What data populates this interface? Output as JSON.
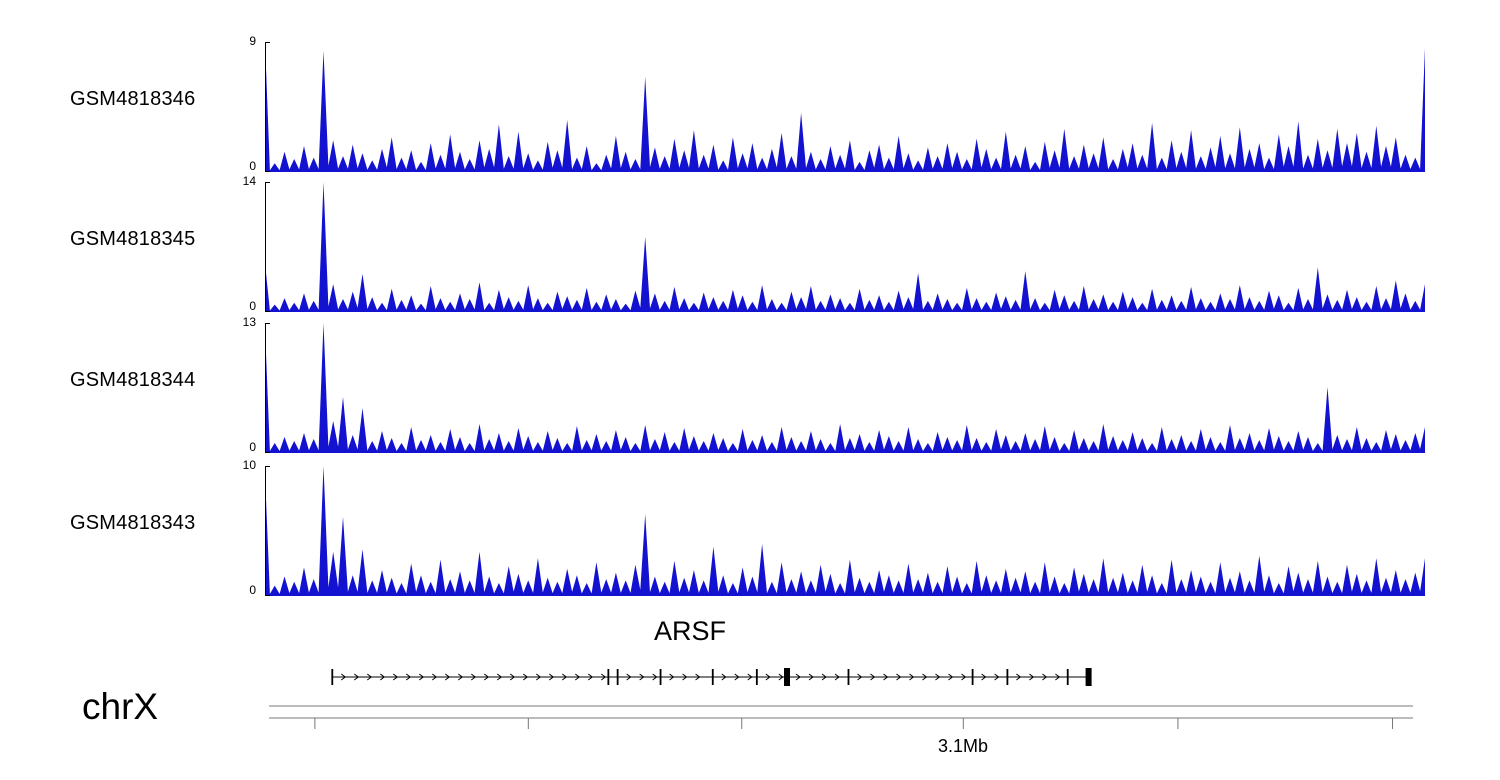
{
  "chart_data": {
    "type": "area",
    "title": "",
    "legend": "none",
    "grid": false,
    "color": "#1212d0",
    "tracks": [
      {
        "label": "GSM4818346",
        "ymax": 9,
        "ymin": 0,
        "values": [
          9,
          0.6,
          1.4,
          0.9,
          1.8,
          1.0,
          8.4,
          2.2,
          1.1,
          1.9,
          1.3,
          0.8,
          1.6,
          2.4,
          1.0,
          1.5,
          0.7,
          2.0,
          1.2,
          2.6,
          1.4,
          0.9,
          2.2,
          1.6,
          3.3,
          1.1,
          2.8,
          1.3,
          0.8,
          2.1,
          1.5,
          3.6,
          1.0,
          1.8,
          0.6,
          1.2,
          2.5,
          1.4,
          0.9,
          6.6,
          1.7,
          1.1,
          2.3,
          1.5,
          2.9,
          1.2,
          1.9,
          0.8,
          2.4,
          1.3,
          2.0,
          1.0,
          1.6,
          2.7,
          1.1,
          4.1,
          1.4,
          0.9,
          1.8,
          1.2,
          2.2,
          0.7,
          1.5,
          1.9,
          1.0,
          2.5,
          1.3,
          0.8,
          1.7,
          1.1,
          2.0,
          1.4,
          0.9,
          2.3,
          1.6,
          1.0,
          2.8,
          1.2,
          1.8,
          0.7,
          2.1,
          1.5,
          3.0,
          1.1,
          1.9,
          1.3,
          2.4,
          0.9,
          1.6,
          2.0,
          1.2,
          3.4,
          1.0,
          2.2,
          1.4,
          2.9,
          1.1,
          1.7,
          2.5,
          1.3,
          3.1,
          1.6,
          2.0,
          1.0,
          2.6,
          1.8,
          3.5,
          1.2,
          2.3,
          1.5,
          3.0,
          2.0,
          2.7,
          1.4,
          3.2,
          1.8,
          2.4,
          1.2,
          1.0,
          8.6
        ]
      },
      {
        "label": "GSM4818345",
        "ymax": 14,
        "ymin": 0,
        "values": [
          5.2,
          0.8,
          1.5,
          1.0,
          2.0,
          1.2,
          14,
          3.0,
          1.4,
          2.2,
          4.1,
          1.6,
          1.0,
          2.5,
          1.3,
          1.8,
          0.9,
          2.8,
          1.5,
          1.1,
          2.0,
          1.4,
          3.2,
          1.0,
          2.4,
          1.6,
          1.2,
          2.9,
          1.5,
          1.0,
          2.2,
          1.7,
          1.3,
          2.6,
          1.1,
          1.9,
          1.4,
          0.9,
          2.3,
          8.1,
          2.0,
          1.2,
          2.7,
          1.5,
          1.0,
          2.1,
          1.6,
          1.2,
          2.4,
          1.8,
          1.1,
          2.9,
          1.4,
          1.0,
          2.2,
          1.6,
          2.8,
          1.2,
          1.9,
          1.5,
          1.0,
          2.5,
          1.3,
          1.8,
          1.1,
          2.3,
          1.6,
          4.2,
          1.2,
          2.0,
          1.4,
          1.0,
          2.6,
          1.5,
          1.1,
          2.1,
          1.7,
          1.3,
          4.4,
          1.5,
          1.0,
          2.4,
          1.8,
          1.2,
          2.8,
          1.4,
          1.9,
          1.1,
          2.2,
          1.6,
          1.0,
          2.5,
          1.3,
          1.8,
          1.2,
          2.7,
          1.5,
          1.1,
          2.0,
          1.4,
          2.9,
          1.6,
          1.2,
          2.3,
          1.8,
          1.0,
          2.6,
          1.4,
          4.8,
          1.9,
          1.3,
          2.4,
          1.6,
          1.1,
          2.8,
          1.5,
          3.4,
          2.0,
          1.2,
          3.0
        ]
      },
      {
        "label": "GSM4818344",
        "ymax": 13,
        "ymin": 0,
        "values": [
          12.4,
          1.0,
          1.6,
          1.2,
          2.0,
          1.4,
          13,
          3.2,
          5.6,
          1.8,
          4.5,
          1.2,
          2.2,
          1.5,
          1.0,
          2.6,
          1.3,
          1.8,
          1.1,
          2.4,
          1.6,
          1.0,
          2.9,
          1.4,
          2.0,
          1.2,
          2.5,
          1.7,
          1.1,
          2.2,
          1.5,
          1.0,
          2.7,
          1.3,
          1.9,
          1.2,
          2.3,
          1.6,
          1.0,
          2.8,
          1.4,
          2.1,
          1.1,
          2.5,
          1.7,
          1.2,
          2.0,
          1.5,
          1.0,
          2.4,
          1.3,
          1.8,
          1.1,
          2.6,
          1.6,
          1.2,
          2.2,
          1.4,
          1.0,
          2.9,
          1.5,
          1.9,
          1.1,
          2.3,
          1.7,
          1.2,
          2.6,
          1.4,
          1.0,
          2.1,
          1.6,
          1.3,
          2.8,
          1.5,
          1.1,
          2.4,
          1.8,
          1.2,
          2.0,
          1.4,
          2.7,
          1.6,
          1.0,
          2.3,
          1.5,
          1.2,
          2.9,
          1.7,
          1.3,
          2.1,
          1.5,
          1.0,
          2.6,
          1.4,
          1.8,
          1.2,
          2.4,
          1.6,
          1.1,
          2.8,
          1.5,
          2.0,
          1.3,
          2.5,
          1.7,
          1.2,
          2.2,
          1.6,
          1.0,
          6.6,
          1.8,
          1.4,
          2.6,
          1.5,
          1.1,
          2.3,
          1.9,
          1.3,
          2.0,
          2.6
        ]
      },
      {
        "label": "GSM4818343",
        "ymax": 10,
        "ymin": 0,
        "values": [
          9.3,
          0.8,
          1.5,
          1.1,
          2.2,
          1.3,
          10,
          3.4,
          6.1,
          1.6,
          3.6,
          1.2,
          2.0,
          1.4,
          1.0,
          2.5,
          1.6,
          1.1,
          2.8,
          1.3,
          1.9,
          1.2,
          3.4,
          1.5,
          1.0,
          2.3,
          1.7,
          1.2,
          2.9,
          1.4,
          1.1,
          2.1,
          1.6,
          1.0,
          2.6,
          1.3,
          1.8,
          1.2,
          2.4,
          6.3,
          1.5,
          1.1,
          2.7,
          1.4,
          2.0,
          1.2,
          3.8,
          1.6,
          1.0,
          2.2,
          1.5,
          4.0,
          1.1,
          2.6,
          1.3,
          1.9,
          1.2,
          2.4,
          1.7,
          1.0,
          2.8,
          1.4,
          1.1,
          2.0,
          1.6,
          1.2,
          2.5,
          1.3,
          1.8,
          1.1,
          2.3,
          1.5,
          1.0,
          2.7,
          1.6,
          1.2,
          2.1,
          1.4,
          1.9,
          1.1,
          2.6,
          1.5,
          1.0,
          2.2,
          1.7,
          1.3,
          2.9,
          1.4,
          1.8,
          1.2,
          2.4,
          1.6,
          1.0,
          2.8,
          1.3,
          2.0,
          1.5,
          1.1,
          2.6,
          1.4,
          1.9,
          1.2,
          3.1,
          1.6,
          1.0,
          2.3,
          1.8,
          1.3,
          2.7,
          1.5,
          1.1,
          2.4,
          1.7,
          1.2,
          2.9,
          1.4,
          2.0,
          1.3,
          1.8,
          2.9
        ]
      }
    ],
    "gene": {
      "name": "ARSF",
      "strand": "right",
      "exons": [
        {
          "pos": 0.058,
          "type": "thin"
        },
        {
          "pos": 0.296,
          "type": "thin"
        },
        {
          "pos": 0.304,
          "type": "thin"
        },
        {
          "pos": 0.341,
          "type": "thin"
        },
        {
          "pos": 0.386,
          "type": "thin"
        },
        {
          "pos": 0.424,
          "type": "thin"
        },
        {
          "pos": 0.45,
          "type": "thick"
        },
        {
          "pos": 0.503,
          "type": "thin"
        },
        {
          "pos": 0.61,
          "type": "thin"
        },
        {
          "pos": 0.64,
          "type": "thin"
        },
        {
          "pos": 0.692,
          "type": "thin"
        },
        {
          "pos": 0.71,
          "type": "thick"
        }
      ]
    },
    "axis": {
      "chromosome": "chrX",
      "ticks": [
        0.043,
        0.227,
        0.411,
        0.602,
        0.787,
        0.972
      ],
      "tick_label": "3.1Mb",
      "tick_label_index": 3
    }
  }
}
